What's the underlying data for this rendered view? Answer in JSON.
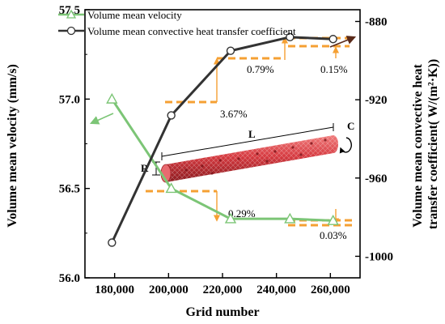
{
  "chart_data": {
    "type": "line",
    "xlabel": "Grid number",
    "ylabel_left": "Volume mean velocity (mm/s)",
    "ylabel_right": "Volume mean convective heat transfer coefficient( W/(m²·K))",
    "x": [
      179000,
      201000,
      223000,
      245000,
      261000
    ],
    "xlim": [
      169000,
      271000
    ],
    "x_ticks": [
      "180,000",
      "200,000",
      "220,000",
      "240,000",
      "260,000"
    ],
    "x_tick_values": [
      180000,
      200000,
      220000,
      240000,
      260000
    ],
    "ylim_left": [
      56.0,
      57.5
    ],
    "y_ticks_left": [
      "56.0",
      "56.5",
      "57.0",
      "57.5"
    ],
    "y_tick_values_left": [
      56.0,
      56.5,
      57.0,
      57.5
    ],
    "ylim_right": [
      -1011,
      -874
    ],
    "y_ticks_right": [
      "-880",
      "-920",
      "-960",
      "-1000"
    ],
    "y_tick_values_right": [
      -880,
      -920,
      -960,
      -1000
    ],
    "grid": false,
    "legend_position": "top-left",
    "series": [
      {
        "name": "Volume mean velocity",
        "axis": "left",
        "color": "#7cc576",
        "marker": "triangle",
        "values": [
          57.0,
          56.5,
          56.33,
          56.33,
          56.32
        ]
      },
      {
        "name": "Volume mean convective heat transfer coefficient",
        "axis": "right",
        "color": "#333333",
        "marker": "circle",
        "values": [
          -993,
          -928,
          -895,
          -888,
          -889
        ]
      }
    ],
    "annotations": [
      "3.67%",
      "0.79%",
      "0.15%",
      "0.29%",
      "0.03%"
    ],
    "inset_labels": {
      "length": "L",
      "radius": "R",
      "circumference": "C"
    },
    "annotation_color": "#f5a033",
    "tube_color": "#cc2e35"
  }
}
